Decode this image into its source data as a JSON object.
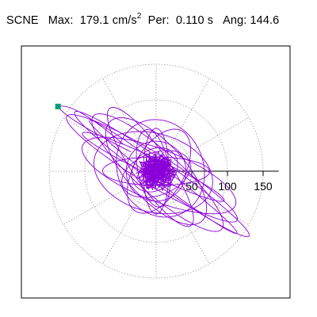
{
  "title": {
    "station": "SCNE",
    "max_label": "Max:",
    "max_value": "179.1",
    "max_unit": "cm/s",
    "max_unit_exp": "2",
    "per_label": "Per:",
    "per_value": "0.110 s",
    "ang_label": "Ang:",
    "ang_value": "144.6"
  },
  "chart_data": {
    "type": "polar",
    "title": "SCNE  Max: 179.1 cm/s2  Per: 0.110 s  Ang: 144.6",
    "radial_ticks": [
      50,
      100,
      150
    ],
    "rlim": [
      0,
      180
    ],
    "grid": true,
    "grid_style": "dotted",
    "grid_spokes_deg": [
      0,
      30,
      60,
      90,
      120,
      150,
      180,
      210,
      240,
      270,
      300,
      330
    ],
    "series_color": "#8b00d8",
    "marker_color": "#009e73",
    "max_point": {
      "r": 179.1,
      "angle_deg": 144.6
    },
    "description": "particle motion trace (orbit) of spectral acceleration, elongated along ~150°/330° axis"
  }
}
